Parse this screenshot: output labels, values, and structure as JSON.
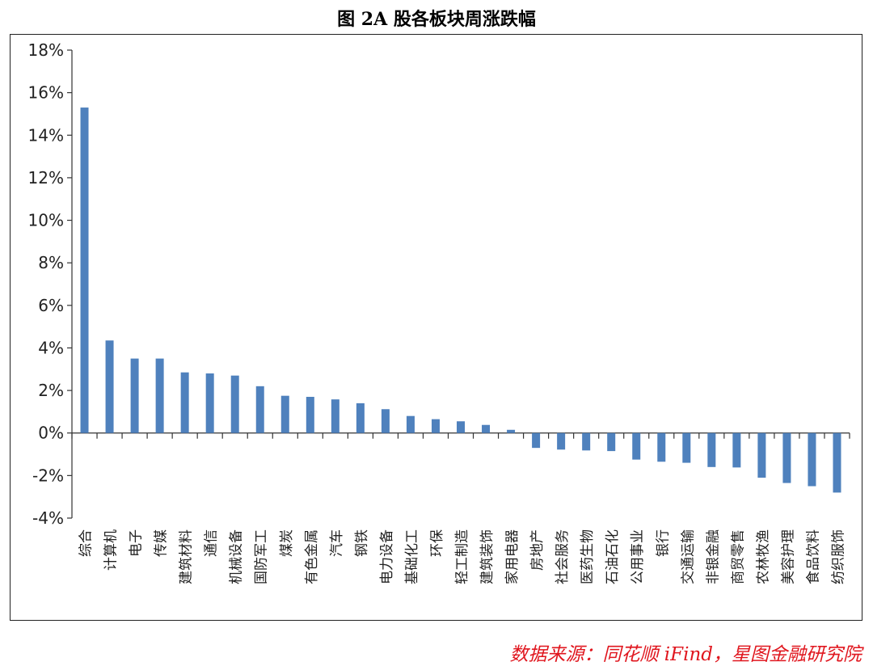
{
  "chart_data": {
    "type": "bar",
    "title": "图 2A 股各板块周涨跌幅",
    "xlabel": "",
    "ylabel": "",
    "ylim": [
      -4,
      18
    ],
    "yticks": [
      "18%",
      "16%",
      "14%",
      "12%",
      "10%",
      "8%",
      "6%",
      "4%",
      "2%",
      "0%",
      "-2%",
      "-4%"
    ],
    "ytick_values": [
      18,
      16,
      14,
      12,
      10,
      8,
      6,
      4,
      2,
      0,
      -2,
      -4
    ],
    "grid": false,
    "bar_color": "#4f81bd",
    "categories": [
      "综合",
      "计算机",
      "电子",
      "传媒",
      "建筑材料",
      "通信",
      "机械设备",
      "国防军工",
      "煤炭",
      "有色金属",
      "汽车",
      "钢铁",
      "电力设备",
      "基础化工",
      "环保",
      "轻工制造",
      "建筑装饰",
      "家用电器",
      "房地产",
      "社会服务",
      "医药生物",
      "石油石化",
      "公用事业",
      "银行",
      "交通运输",
      "非银金融",
      "商贸零售",
      "农林牧渔",
      "美容护理",
      "食品饮料",
      "纺织服饰"
    ],
    "values": [
      15.3,
      4.35,
      3.5,
      3.5,
      2.85,
      2.8,
      2.7,
      2.2,
      1.75,
      1.7,
      1.58,
      1.4,
      1.12,
      0.8,
      0.65,
      0.55,
      0.38,
      0.15,
      -0.7,
      -0.78,
      -0.82,
      -0.85,
      -1.25,
      -1.35,
      -1.4,
      -1.6,
      -1.62,
      -2.1,
      -2.35,
      -2.5,
      -2.8
    ]
  },
  "source_text": "数据来源：同花顺 iFind，星图金融研究院"
}
